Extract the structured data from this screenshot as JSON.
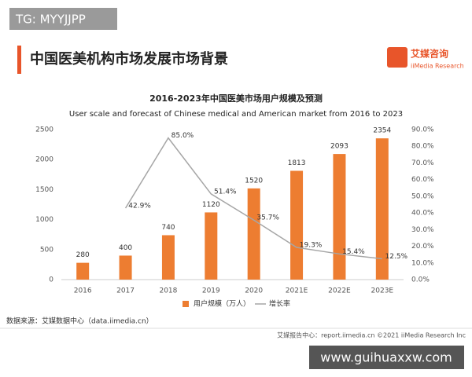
{
  "page": {
    "tag": "TG: MYYJJPP",
    "header": "中国医美机构市场发展市场背景",
    "logo_cn": "艾媒咨询",
    "logo_en": "iiMedia Research",
    "source": "数据来源：艾媒数据中心（data.iimedia.cn）",
    "footer": "艾媒报告中心：report.iimedia.cn   ©2021  iiMedia Research  Inc",
    "watermark": "www.guihuaxxw.com"
  },
  "chart_data": {
    "type": "bar",
    "title": "2016-2023年中国医美市场用户规模及预测",
    "subtitle": "User scale and forecast of Chinese medical and American market from 2016 to 2023",
    "categories": [
      "2016",
      "2017",
      "2018",
      "2019",
      "2020",
      "2021E",
      "2022E",
      "2023E"
    ],
    "series": [
      {
        "name": "用户规模（万人）",
        "type": "bar",
        "color": "#ed7d31",
        "values": [
          280,
          400,
          740,
          1120,
          1520,
          1813,
          2093,
          2354
        ]
      },
      {
        "name": "增长率",
        "type": "line",
        "axis": "y2",
        "color": "#a6a6a6",
        "values": [
          null,
          42.9,
          85.0,
          51.4,
          35.7,
          19.3,
          15.4,
          12.5
        ],
        "value_labels": [
          null,
          "42.9%",
          "85.0%",
          "51.4%",
          "35.7%",
          "19.3%",
          "15.4%",
          "12.5%"
        ]
      }
    ],
    "ylim": [
      0,
      2500
    ],
    "yticks": [
      0,
      500,
      1000,
      1500,
      2000,
      2500
    ],
    "y2lim": [
      0,
      90
    ],
    "y2ticks": [
      {
        "value": 0,
        "label": "0.0%"
      },
      {
        "value": 10,
        "label": "10.0%"
      },
      {
        "value": 20,
        "label": "20.0%"
      },
      {
        "value": 30,
        "label": "30.0%"
      },
      {
        "value": 40,
        "label": "40.0%"
      },
      {
        "value": 50,
        "label": "50.0%"
      },
      {
        "value": 60,
        "label": "60.0%"
      },
      {
        "value": 70,
        "label": "70.0%"
      },
      {
        "value": 80,
        "label": "80.0%"
      },
      {
        "value": 90,
        "label": "90.0%"
      }
    ],
    "grid": false,
    "legend": "bottom"
  }
}
